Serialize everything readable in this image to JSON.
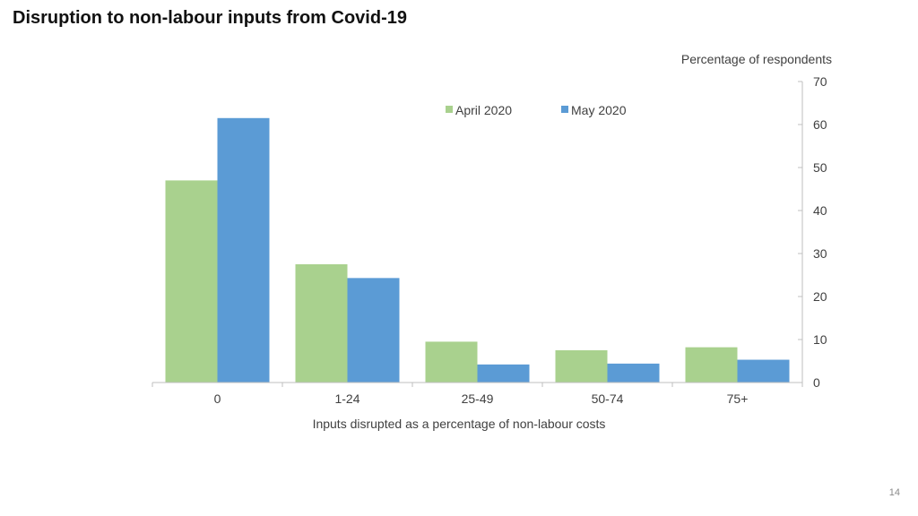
{
  "slide": {
    "title": "Disruption to non-labour inputs from Covid-19",
    "page_number": "14"
  },
  "chart_data": {
    "type": "bar",
    "title": "Disruption to non-labour inputs from Covid-19",
    "xlabel": "Inputs disrupted as a percentage of non-labour costs",
    "ylabel": "Percentage of respondents",
    "categories": [
      "0",
      "1-24",
      "25-49",
      "50-74",
      "75+"
    ],
    "series": [
      {
        "name": "April 2020",
        "color": "#a9d18e",
        "values": [
          47,
          27.5,
          9.5,
          7.5,
          8.2
        ]
      },
      {
        "name": "May 2020",
        "color": "#5b9bd5",
        "values": [
          61.5,
          24.3,
          4.2,
          4.4,
          5.3
        ]
      }
    ],
    "ylim": [
      0,
      70
    ],
    "yticks": [
      0,
      10,
      20,
      30,
      40,
      50,
      60,
      70
    ],
    "y_axis_side": "right",
    "grid": false,
    "legend_position": "top-right"
  }
}
